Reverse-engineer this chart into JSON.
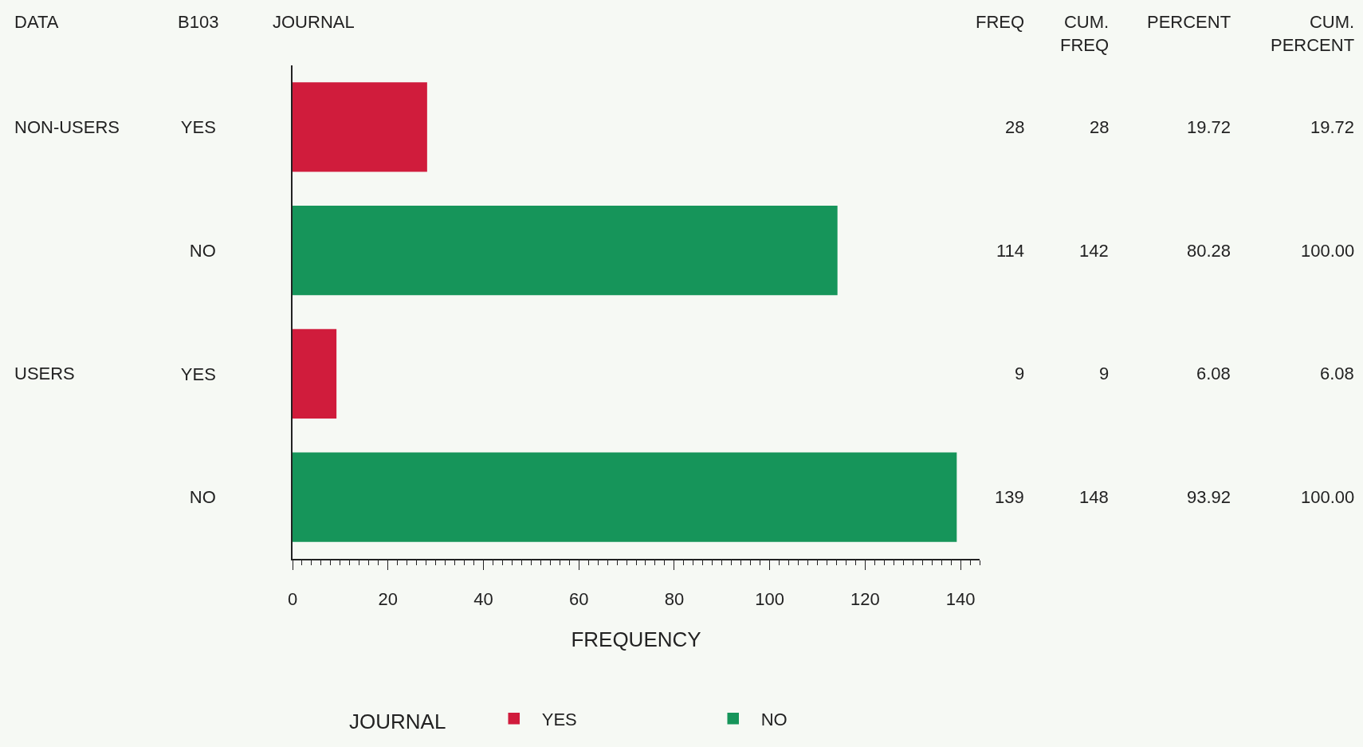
{
  "chart_data": {
    "type": "bar",
    "orientation": "horizontal",
    "categories": [
      "YES",
      "NO",
      "YES",
      "NO"
    ],
    "series": [
      {
        "name": "YES",
        "color": "#d01c3c",
        "values": [
          28,
          null,
          9,
          null
        ]
      },
      {
        "name": "NO",
        "color": "#16955a",
        "values": [
          null,
          114,
          null,
          139
        ]
      }
    ],
    "xlabel": "FREQUENCY",
    "legend_title": "JOURNAL",
    "legend": "bottom",
    "xlim": [
      0,
      144
    ],
    "xticks": [
      0,
      20,
      40,
      60,
      80,
      100,
      120,
      140
    ],
    "grid": false,
    "annotations": [
      "DATA",
      "B103",
      "JOURNAL",
      "FREQ",
      "CUM.\nFREQ",
      "PERCENT",
      "CUM.\nPERCENT",
      "NON-USERS",
      "USERS",
      "28",
      "28",
      "19.72",
      "19.72",
      "114",
      "142",
      "80.28",
      "100.00",
      "9",
      "9",
      "6.08",
      "6.08",
      "139",
      "148",
      "93.92",
      "100.00"
    ]
  }
}
